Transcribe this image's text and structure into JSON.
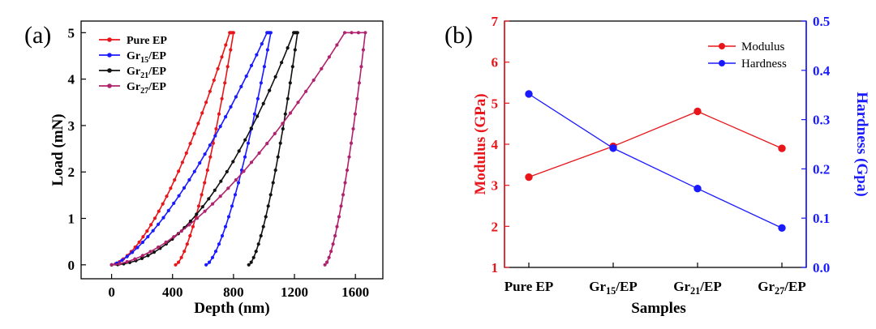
{
  "chart_data": [
    {
      "panel": "(a)",
      "type": "line",
      "xlabel": "Depth (nm)",
      "ylabel": "Load (mN)",
      "xlim": [
        -200,
        1780
      ],
      "ylim": [
        -0.3,
        5.25
      ],
      "xticks": [
        0,
        400,
        800,
        1200,
        1600
      ],
      "yticks": [
        0,
        1,
        2,
        3,
        4,
        5
      ],
      "series": [
        {
          "name": "Pure EP",
          "name_main": "Pure EP",
          "name_sub": "",
          "name_tail": "",
          "color": "#e8161b",
          "loading_end": 775,
          "hold_end": 800,
          "residual": 420,
          "exp": 1.6
        },
        {
          "name": "Gr15/EP",
          "name_main": "Gr",
          "name_sub": "15",
          "name_tail": "/EP",
          "color": "#1a1aff",
          "loading_end": 1020,
          "hold_end": 1045,
          "residual": 620,
          "exp": 1.45
        },
        {
          "name": "Gr21/EP",
          "name_main": "Gr",
          "name_sub": "21",
          "name_tail": "/EP",
          "color": "#111111",
          "loading_end": 1195,
          "hold_end": 1220,
          "residual": 900,
          "exp": 2.0
        },
        {
          "name": "Gr27/EP",
          "name_main": "Gr",
          "name_sub": "27",
          "name_tail": "/EP",
          "color": "#b0226e",
          "loading_end": 1530,
          "hold_end": 1665,
          "residual": 1400,
          "exp": 1.6
        }
      ]
    },
    {
      "panel": "(b)",
      "type": "line",
      "xlabel": "Samples",
      "ylabel": "Modulus (GPa)",
      "y2label": "Hardness (Gpa)",
      "categories": [
        {
          "main": "Pure EP",
          "sub": "",
          "tail": ""
        },
        {
          "main": "Gr",
          "sub": "15",
          "tail": "/EP"
        },
        {
          "main": "Gr",
          "sub": "21",
          "tail": "/EP"
        },
        {
          "main": "Gr",
          "sub": "27",
          "tail": "/EP"
        }
      ],
      "ylim": [
        1,
        7
      ],
      "yticks": [
        1,
        2,
        3,
        4,
        5,
        6,
        7
      ],
      "y2lim": [
        0.0,
        0.5
      ],
      "y2ticks": [
        "0.0",
        "0.1",
        "0.2",
        "0.3",
        "0.4",
        "0.5"
      ],
      "series": [
        {
          "name": "Modulus",
          "axis": "left",
          "color": "#e8161b",
          "values": [
            3.2,
            3.95,
            4.8,
            3.9
          ]
        },
        {
          "name": "Hardness",
          "axis": "right",
          "color": "#1a1aff",
          "values": [
            0.352,
            0.242,
            0.16,
            0.08
          ]
        }
      ]
    }
  ]
}
